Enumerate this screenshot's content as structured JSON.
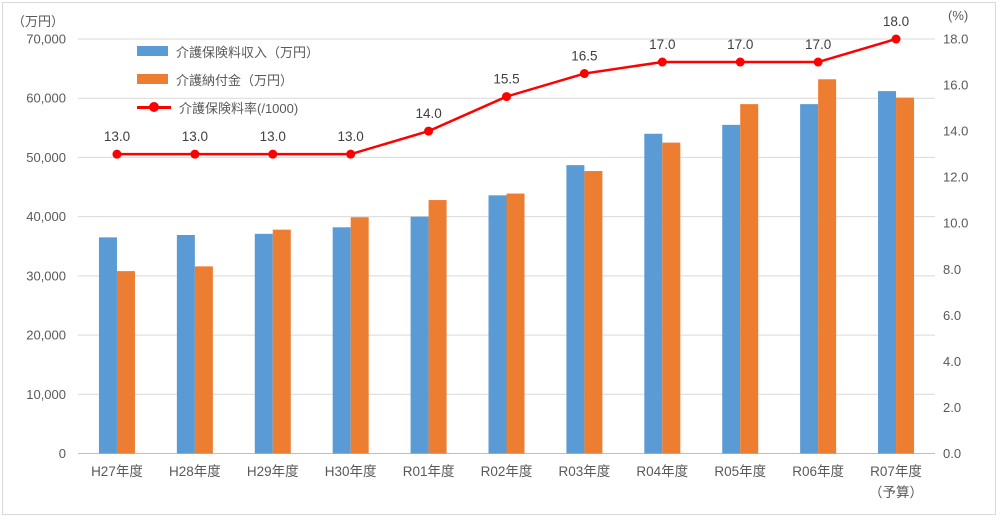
{
  "page": {
    "background": "#FFFFFF",
    "frame_border_color": "#D9D9D9"
  },
  "chart_data": {
    "type": "combo",
    "categories": [
      "H27年度",
      "H28年度",
      "H29年度",
      "H30年度",
      "R01年度",
      "R02年度",
      "R03年度",
      "R04年度",
      "R05年度",
      "R06年度",
      "R07年度"
    ],
    "category_note": {
      "index": 10,
      "label": "（予算）"
    },
    "series": [
      {
        "name": "介護保険料収入（万円）",
        "type": "bar",
        "axis": "left",
        "color": "#5B9BD5",
        "values": [
          36500,
          36900,
          37100,
          38200,
          40000,
          43600,
          48700,
          54000,
          55500,
          59000,
          61200
        ]
      },
      {
        "name": "介護納付金（万円）",
        "type": "bar",
        "axis": "left",
        "color": "#ED7D31",
        "values": [
          30800,
          31600,
          37800,
          39900,
          42800,
          43900,
          47700,
          52500,
          59000,
          63200,
          60100
        ]
      },
      {
        "name": "介護保険料率(/1000)",
        "type": "line",
        "axis": "right",
        "color": "#FF0000",
        "values": [
          13,
          13,
          13,
          13,
          14,
          15.5,
          16.5,
          17,
          17,
          17,
          18
        ],
        "point_labels": [
          "13.0",
          "13.0",
          "13.0",
          "13.0",
          "14.0",
          "15.5",
          "16.5",
          "17.0",
          "17.0",
          "17.0",
          "18.0"
        ]
      }
    ],
    "left_axis": {
      "unit": "（万円）",
      "min": 0,
      "max": 70000,
      "tick_interval": 10000,
      "tick_labels": [
        "70,000",
        "60,000",
        "50,000",
        "40,000",
        "30,000",
        "20,000",
        "10,000",
        "0"
      ]
    },
    "right_axis": {
      "unit": "(%)",
      "min": 0,
      "max": 18,
      "tick_interval": 2,
      "tick_labels": [
        "18.0",
        "16.0",
        "14.0",
        "12.0",
        "10.0",
        "8.0",
        "6.0",
        "4.0",
        "2.0",
        "0.0"
      ]
    },
    "grid": true,
    "legend_position": "top-left-inside",
    "colors": {
      "gridline": "#D9D9D9",
      "axis_line": "#BFBFBF",
      "tick_text": "#595959",
      "category_text": "#595959",
      "data_label_text": "#404040"
    }
  }
}
